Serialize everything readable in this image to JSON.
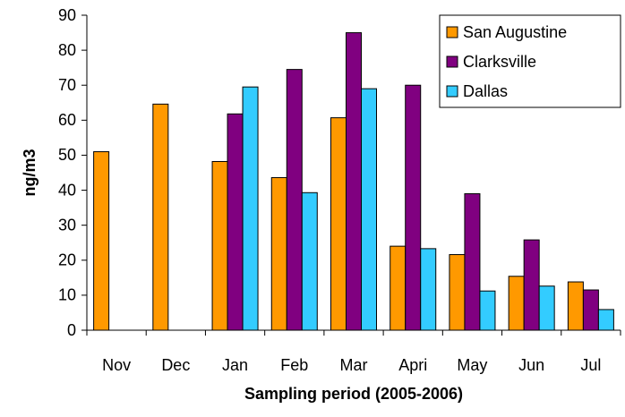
{
  "chart_data": {
    "type": "bar",
    "xlabel": "Sampling period (2005-2006)",
    "ylabel": "ng/m3",
    "categories": [
      "Nov",
      "Dec",
      "Jan",
      "Feb",
      "Mar",
      "Apri",
      "May",
      "Jun",
      "Jul"
    ],
    "series": [
      {
        "name": "San Augustine",
        "color": "#ff9900",
        "values": [
          51,
          64.6,
          48.2,
          43.6,
          60.7,
          24,
          21.6,
          15.4,
          13.8
        ]
      },
      {
        "name": "Clarksville",
        "color": "#800080",
        "values": [
          null,
          null,
          61.8,
          74.5,
          85,
          70,
          39,
          25.8,
          11.5
        ]
      },
      {
        "name": "Dallas",
        "color": "#33ccff",
        "values": [
          null,
          null,
          69.5,
          39.3,
          69,
          23.3,
          11.2,
          12.6,
          5.9
        ]
      }
    ],
    "ylim": [
      0,
      90
    ],
    "yticks": [
      0,
      10,
      20,
      30,
      40,
      50,
      60,
      70,
      80,
      90
    ],
    "grid": false,
    "legend": "upper right"
  }
}
